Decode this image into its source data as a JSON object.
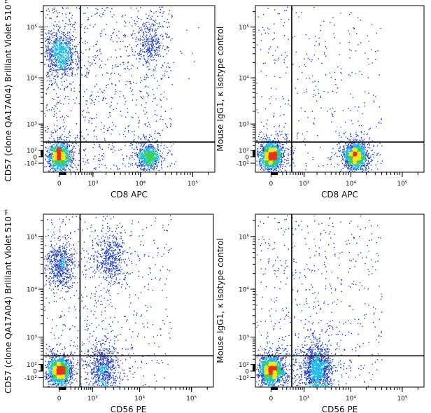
{
  "colors": {
    "low": "#1f3fd6",
    "mid": "#19b7e8",
    "midhigh": "#33d15a",
    "high": "#f4e51c",
    "peak": "#e2341c",
    "gate_line": "#000000"
  },
  "chart_data": [
    {
      "type": "scatter",
      "title": "",
      "xlabel": "CD8 APC",
      "ylabel": "CD57 (clone QA17A04) Brilliant Violet 510™",
      "x_scale": "biexponential",
      "y_scale": "biexponential",
      "x_ticks": [
        "0",
        "10³",
        "10⁴",
        "10⁵"
      ],
      "y_ticks": [
        "-10²",
        "0",
        "10²",
        "10³",
        "10⁴",
        "10⁵"
      ],
      "gate": {
        "x": 450,
        "y": 280
      },
      "populations": [
        {
          "name": "CD8- CD57-",
          "x_center": 0,
          "y_center": 10,
          "density": "high",
          "share": 0.33
        },
        {
          "name": "CD8+ CD57-",
          "x_center": 14000,
          "y_center": 10,
          "density": "high",
          "share": 0.18
        },
        {
          "name": "CD8- CD57+",
          "x_center": 0,
          "y_center": 30000,
          "density": "medium",
          "share": 0.2
        },
        {
          "name": "CD8+ CD57+",
          "x_center": 15000,
          "y_center": 50000,
          "density": "medium",
          "share": 0.08
        }
      ],
      "grid": false,
      "legend": "none"
    },
    {
      "type": "scatter",
      "title": "",
      "xlabel": "CD8 APC",
      "ylabel": "Mouse IgG1, κ isotype control",
      "x_scale": "biexponential",
      "y_scale": "biexponential",
      "x_ticks": [
        "0",
        "10³",
        "10⁴",
        "10⁵"
      ],
      "y_ticks": [
        "-10²",
        "0",
        "10²",
        "10³",
        "10⁴",
        "10⁵"
      ],
      "gate": {
        "x": 450,
        "y": 280
      },
      "populations": [
        {
          "name": "CD8-",
          "x_center": 0,
          "y_center": 20,
          "density": "high",
          "share": 0.5
        },
        {
          "name": "CD8+",
          "x_center": 12000,
          "y_center": 20,
          "density": "high",
          "share": 0.42
        }
      ],
      "grid": false,
      "legend": "none"
    },
    {
      "type": "scatter",
      "title": "",
      "xlabel": "CD56 PE",
      "ylabel": "CD57 (clone QA17A04) Brilliant Violet 510™",
      "x_scale": "biexponential",
      "y_scale": "biexponential",
      "x_ticks": [
        "0",
        "10³",
        "10⁴",
        "10⁵"
      ],
      "y_ticks": [
        "-10²",
        "0",
        "10²",
        "10³",
        "10⁴",
        "10⁵"
      ],
      "gate": {
        "x": 450,
        "y": 280
      },
      "populations": [
        {
          "name": "CD56- CD57-",
          "x_center": 0,
          "y_center": 10,
          "density": "high",
          "share": 0.45
        },
        {
          "name": "CD56+ CD57-",
          "x_center": 1800,
          "y_center": 30,
          "density": "medium",
          "share": 0.18
        },
        {
          "name": "CD56- CD57+",
          "x_center": 0,
          "y_center": 30000,
          "density": "medium",
          "share": 0.15
        },
        {
          "name": "CD56+ CD57+",
          "x_center": 2500,
          "y_center": 40000,
          "density": "medium",
          "share": 0.12
        }
      ],
      "grid": false,
      "legend": "none"
    },
    {
      "type": "scatter",
      "title": "",
      "xlabel": "CD56 PE",
      "ylabel": "Mouse IgG1, κ isotype control",
      "x_scale": "biexponential",
      "y_scale": "biexponential",
      "x_ticks": [
        "0",
        "10³",
        "10⁴",
        "10⁵"
      ],
      "y_ticks": [
        "-10²",
        "0",
        "10²",
        "10³",
        "10⁴",
        "10⁵"
      ],
      "gate": {
        "x": 450,
        "y": 280
      },
      "populations": [
        {
          "name": "CD56-",
          "x_center": 0,
          "y_center": 20,
          "density": "high",
          "share": 0.55
        },
        {
          "name": "CD56+",
          "x_center": 2000,
          "y_center": 20,
          "density": "medium",
          "share": 0.33
        }
      ],
      "grid": false,
      "legend": "none"
    }
  ]
}
